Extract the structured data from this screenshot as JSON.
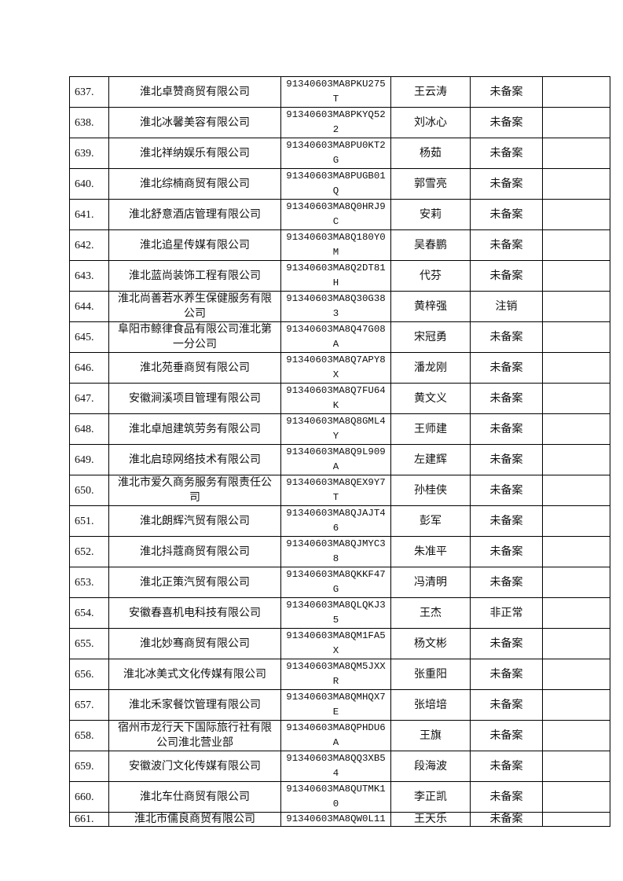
{
  "rows": [
    {
      "no": "637.",
      "company": "淮北卓赞商贸有限公司",
      "code": "91340603MA8PKU275T",
      "person": "王云涛",
      "status": "未备案",
      "note": ""
    },
    {
      "no": "638.",
      "company": "淮北冰馨美容有限公司",
      "code": "91340603MA8PKYQ522",
      "person": "刘冰心",
      "status": "未备案",
      "note": ""
    },
    {
      "no": "639.",
      "company": "淮北祥纳娱乐有限公司",
      "code": "91340603MA8PU0KT2G",
      "person": "杨茹",
      "status": "未备案",
      "note": ""
    },
    {
      "no": "640.",
      "company": "淮北综楠商贸有限公司",
      "code": "91340603MA8PUGB01Q",
      "person": "郭雪亮",
      "status": "未备案",
      "note": ""
    },
    {
      "no": "641.",
      "company": "淮北舒意酒店管理有限公司",
      "code": "91340603MA8Q0HRJ9C",
      "person": "安莉",
      "status": "未备案",
      "note": ""
    },
    {
      "no": "642.",
      "company": "淮北追星传媒有限公司",
      "code": "91340603MA8Q180Y0M",
      "person": "吴春鹏",
      "status": "未备案",
      "note": ""
    },
    {
      "no": "643.",
      "company": "淮北蓝尚装饰工程有限公司",
      "code": "91340603MA8Q2DT81H",
      "person": "代芬",
      "status": "未备案",
      "note": ""
    },
    {
      "no": "644.",
      "company": "淮北尚善若水养生保健服务有限公司",
      "code": "91340603MA8Q30G383",
      "person": "黄梓强",
      "status": "注销",
      "note": ""
    },
    {
      "no": "645.",
      "company": "阜阳市鲸律食品有限公司淮北第一分公司",
      "code": "91340603MA8Q47G08A",
      "person": "宋冠勇",
      "status": "未备案",
      "note": ""
    },
    {
      "no": "646.",
      "company": "淮北苑垂商贸有限公司",
      "code": "91340603MA8Q7APY8X",
      "person": "潘龙刚",
      "status": "未备案",
      "note": ""
    },
    {
      "no": "647.",
      "company": "安徽涧溪项目管理有限公司",
      "code": "91340603MA8Q7FU64K",
      "person": "黄文义",
      "status": "未备案",
      "note": ""
    },
    {
      "no": "648.",
      "company": "淮北卓旭建筑劳务有限公司",
      "code": "91340603MA8Q8GML4Y",
      "person": "王师建",
      "status": "未备案",
      "note": ""
    },
    {
      "no": "649.",
      "company": "淮北启琼网络技术有限公司",
      "code": "91340603MA8Q9L909A",
      "person": "左建辉",
      "status": "未备案",
      "note": ""
    },
    {
      "no": "650.",
      "company": "淮北市爱久商务服务有限责任公司",
      "code": "91340603MA8QEX9Y7T",
      "person": "孙桂侠",
      "status": "未备案",
      "note": ""
    },
    {
      "no": "651.",
      "company": "淮北朗辉汽贸有限公司",
      "code": "91340603MA8QJAJT46",
      "person": "彭军",
      "status": "未备案",
      "note": ""
    },
    {
      "no": "652.",
      "company": "淮北抖蔻商贸有限公司",
      "code": "91340603MA8QJMYC38",
      "person": "朱准平",
      "status": "未备案",
      "note": ""
    },
    {
      "no": "653.",
      "company": "淮北正策汽贸有限公司",
      "code": "91340603MA8QKKF47G",
      "person": "冯清明",
      "status": "未备案",
      "note": ""
    },
    {
      "no": "654.",
      "company": "安徽春喜机电科技有限公司",
      "code": "91340603MA8QLQKJ35",
      "person": "王杰",
      "status": "非正常",
      "note": ""
    },
    {
      "no": "655.",
      "company": "淮北妙骞商贸有限公司",
      "code": "91340603MA8QM1FA5X",
      "person": "杨文彬",
      "status": "未备案",
      "note": ""
    },
    {
      "no": "656.",
      "company": "淮北冰美式文化传媒有限公司",
      "code": "91340603MA8QM5JXXR",
      "person": "张重阳",
      "status": "未备案",
      "note": ""
    },
    {
      "no": "657.",
      "company": "淮北禾家餐饮管理有限公司",
      "code": "91340603MA8QMHQX7E",
      "person": "张培培",
      "status": "未备案",
      "note": ""
    },
    {
      "no": "658.",
      "company": "宿州市龙行天下国际旅行社有限公司淮北营业部",
      "code": "91340603MA8QPHDU6A",
      "person": "王旗",
      "status": "未备案",
      "note": ""
    },
    {
      "no": "659.",
      "company": "安徽波门文化传媒有限公司",
      "code": "91340603MA8QQ3XB54",
      "person": "段海波",
      "status": "未备案",
      "note": ""
    },
    {
      "no": "660.",
      "company": "淮北车仕商贸有限公司",
      "code": "91340603MA8QUTMK10",
      "person": "李正凯",
      "status": "未备案",
      "note": ""
    },
    {
      "no": "661.",
      "company": "淮北市儒良商贸有限公司",
      "code": "91340603MA8QW0L11",
      "person": "王天乐",
      "status": "未备案",
      "note": ""
    }
  ]
}
